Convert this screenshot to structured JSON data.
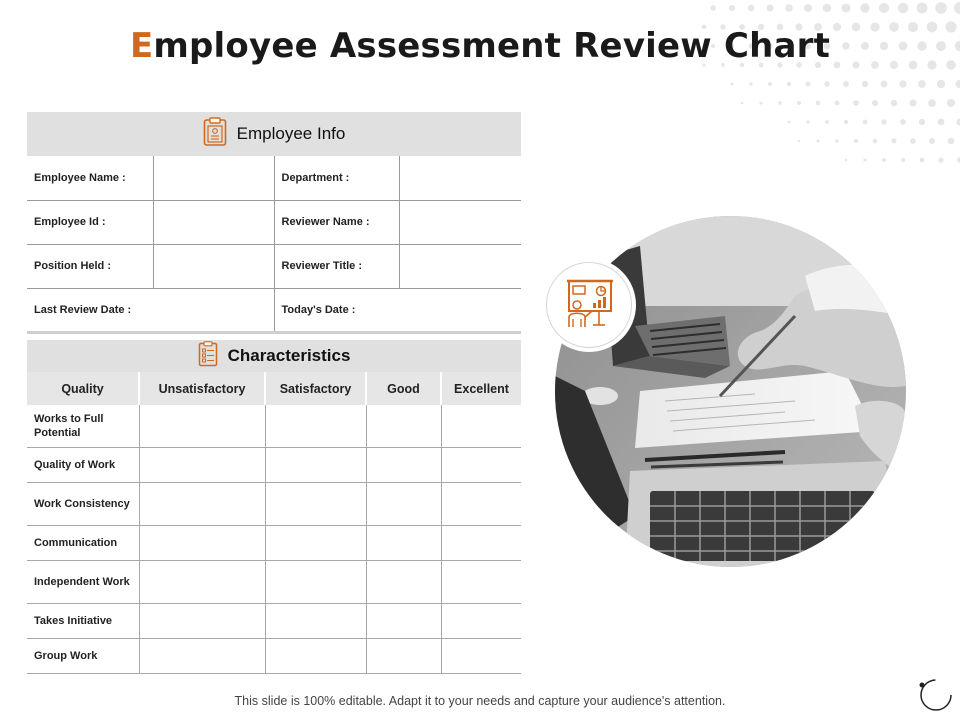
{
  "title": {
    "first_letter": "E",
    "rest": "mployee Assessment Review Chart"
  },
  "employee_info": {
    "header": "Employee Info",
    "icon": "clipboard-icon",
    "fields": [
      [
        "Employee Name :",
        "Department :"
      ],
      [
        "Employee Id :",
        "Reviewer Name :"
      ],
      [
        "Position Held :",
        "Reviewer Title :"
      ],
      [
        "Last Review Date :",
        "Today's Date :"
      ]
    ]
  },
  "characteristics": {
    "header": "Characteristics",
    "icon": "checklist-icon",
    "columns": [
      "Quality",
      "Unsatisfactory",
      "Satisfactory",
      "Good",
      "Excellent"
    ],
    "rows": [
      "Works to Full Potential",
      "Quality of Work",
      "Work Consistency",
      "Communication",
      "Independent Work",
      "Takes Initiative",
      "Group Work"
    ]
  },
  "badge_icon": "presentation-board-icon",
  "photo_icon": "laptop-desk-photo",
  "accent_color": "#d0691e",
  "footer": "This slide is 100% editable. Adapt it to your needs and capture your audience's attention."
}
